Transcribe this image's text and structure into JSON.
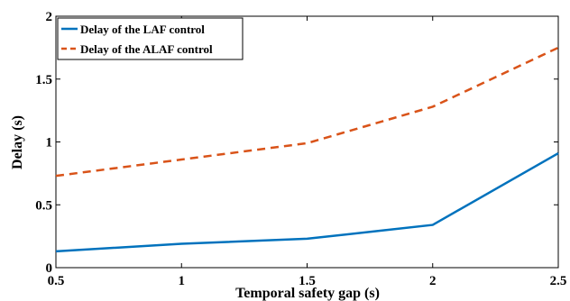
{
  "chart_data": {
    "type": "line",
    "title": "",
    "xlabel": "Temporal safety gap (s)",
    "ylabel": "Delay (s)",
    "xlim": [
      0.5,
      2.5
    ],
    "ylim": [
      0,
      2
    ],
    "x_ticks": [
      0.5,
      1,
      1.5,
      2,
      2.5
    ],
    "x_tick_labels": [
      "0.5",
      "1",
      "1.5",
      "2",
      "2.5"
    ],
    "y_ticks": [
      0,
      0.5,
      1,
      1.5,
      2
    ],
    "y_tick_labels": [
      "0",
      "0.5",
      "1",
      "1.5",
      "2"
    ],
    "grid": false,
    "legend_position": "top-left",
    "series": [
      {
        "name": "Delay of the LAF control",
        "color": "#0072BD",
        "style": "solid",
        "x": [
          0.5,
          1,
          1.5,
          2,
          2.5
        ],
        "y": [
          0.13,
          0.19,
          0.23,
          0.34,
          0.91
        ]
      },
      {
        "name": "Delay of the ALAF control",
        "color": "#D95319",
        "style": "dashed",
        "x": [
          0.5,
          1,
          1.5,
          2,
          2.5
        ],
        "y": [
          0.73,
          0.86,
          0.99,
          1.28,
          1.75
        ]
      }
    ]
  }
}
